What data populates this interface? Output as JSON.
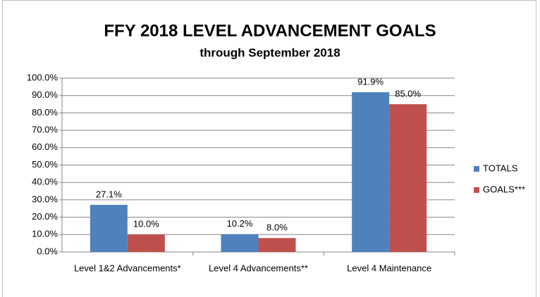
{
  "chart_data": {
    "type": "bar",
    "title": "FFY 2018 LEVEL ADVANCEMENT GOALS",
    "subtitle": "through September 2018",
    "categories": [
      "Level 1&2 Advancements*",
      "Level 4 Advancements**",
      "Level 4 Maintenance"
    ],
    "series": [
      {
        "name": "TOTALS",
        "color": "#4f81bd",
        "values": [
          27.1,
          10.2,
          91.9
        ],
        "value_labels": [
          "27.1%",
          "10.2%",
          "91.9%"
        ]
      },
      {
        "name": "GOALS***",
        "color": "#c0504d",
        "values": [
          10.0,
          8.0,
          85.0
        ],
        "value_labels": [
          "10.0%",
          "8.0%",
          "85.0%"
        ]
      }
    ],
    "ylim": [
      0,
      100
    ],
    "yticks": [
      {
        "value": 0,
        "label": "0.0%"
      },
      {
        "value": 10,
        "label": "10.0%"
      },
      {
        "value": 20,
        "label": "20.0%"
      },
      {
        "value": 30,
        "label": "30.0%"
      },
      {
        "value": 40,
        "label": "40.0%"
      },
      {
        "value": 50,
        "label": "50.0%"
      },
      {
        "value": 60,
        "label": "60.0%"
      },
      {
        "value": 70,
        "label": "70.0%"
      },
      {
        "value": 80,
        "label": "80.0%"
      },
      {
        "value": 90,
        "label": "90.0%"
      },
      {
        "value": 100,
        "label": "100.0%"
      }
    ],
    "grid": true,
    "legend": "right"
  }
}
